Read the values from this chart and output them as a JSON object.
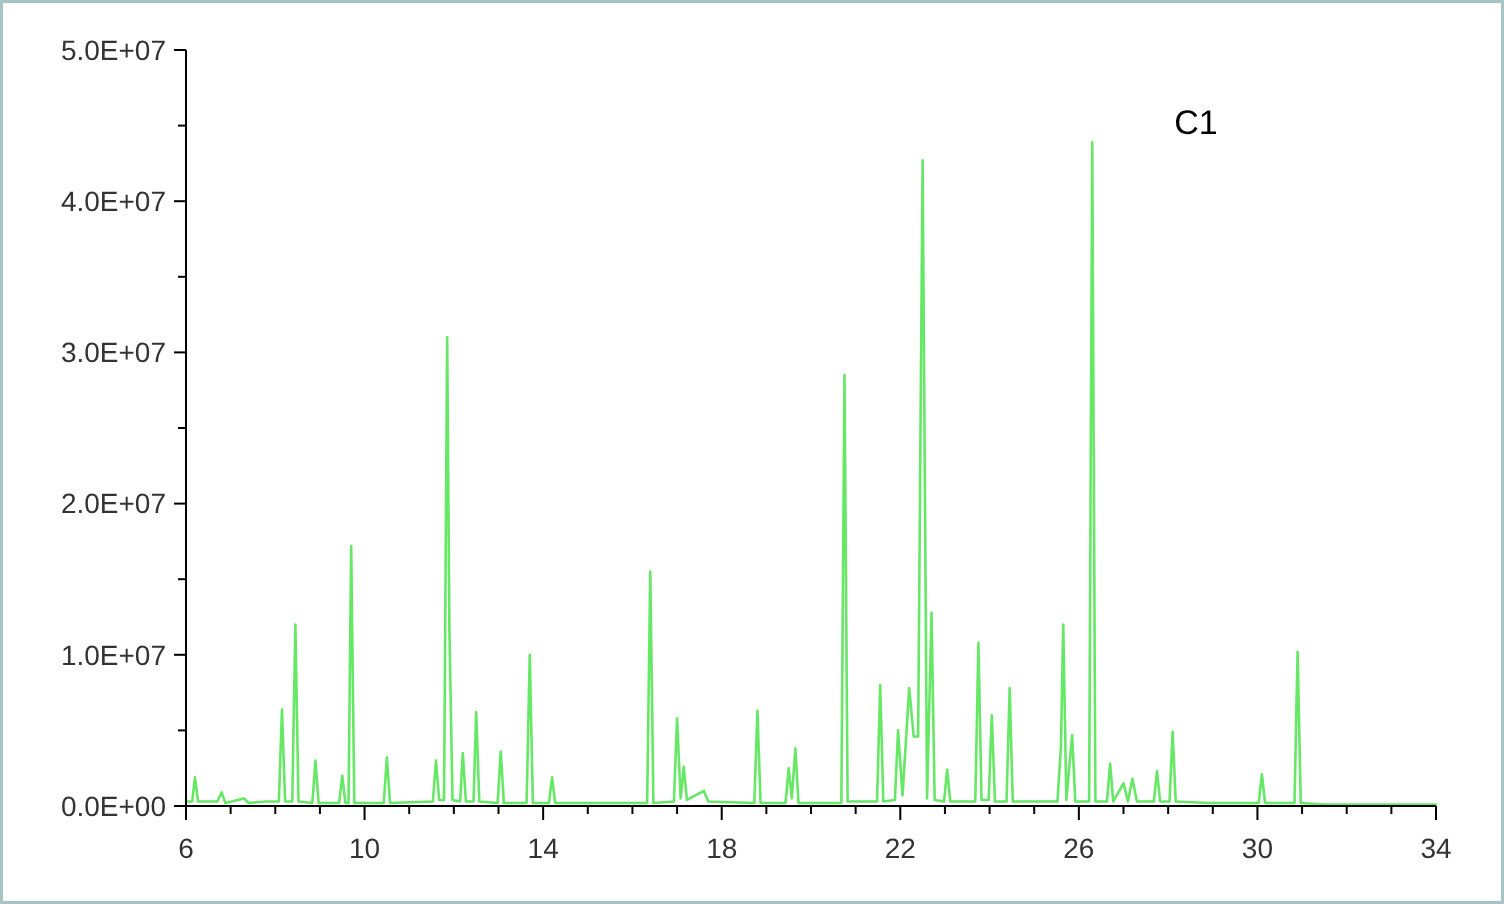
{
  "chart_data": {
    "type": "line",
    "annotations": [
      "C1"
    ],
    "xlim": [
      6,
      34
    ],
    "xticks": [
      6,
      {
        "value": 7,
        "label": null
      },
      {
        "value": 8,
        "label": null
      },
      {
        "value": 9,
        "label": null
      },
      10,
      {
        "value": 11,
        "label": null
      },
      {
        "value": 12,
        "label": null
      },
      {
        "value": 13,
        "label": null
      },
      14,
      {
        "value": 15,
        "label": null
      },
      {
        "value": 16,
        "label": null
      },
      {
        "value": 17,
        "label": null
      },
      18,
      {
        "value": 19,
        "label": null
      },
      {
        "value": 20,
        "label": null
      },
      {
        "value": 21,
        "label": null
      },
      22,
      {
        "value": 23,
        "label": null
      },
      {
        "value": 24,
        "label": null
      },
      {
        "value": 25,
        "label": null
      },
      26,
      {
        "value": 27,
        "label": null
      },
      {
        "value": 28,
        "label": null
      },
      {
        "value": 29,
        "label": null
      },
      30,
      {
        "value": 31,
        "label": null
      },
      {
        "value": 32,
        "label": null
      },
      {
        "value": 33,
        "label": null
      },
      34
    ],
    "ylim": [
      0,
      50000000.0
    ],
    "yticks": [
      {
        "value": 0,
        "label": "0.0E+00"
      },
      {
        "value": 5000000.0,
        "label": null
      },
      {
        "value": 10000000.0,
        "label": "1.0E+07"
      },
      {
        "value": 15000000.0,
        "label": null
      },
      {
        "value": 20000000.0,
        "label": "2.0E+07"
      },
      {
        "value": 25000000.0,
        "label": null
      },
      {
        "value": 30000000.0,
        "label": "3.0E+07"
      },
      {
        "value": 35000000.0,
        "label": null
      },
      {
        "value": 40000000.0,
        "label": "4.0E+07"
      },
      {
        "value": 45000000.0,
        "label": null
      },
      {
        "value": 50000000.0,
        "label": "5.0E+07"
      }
    ],
    "grid": false,
    "marker": "none",
    "line_style": "solid",
    "series": [
      {
        "color": "#66e866",
        "x": [
          6,
          6.14,
          6.2,
          6.27,
          6.7,
          6.8,
          6.88,
          7.3,
          7.4,
          7.8,
          8.08,
          8.15,
          8.22,
          8.38,
          8.45,
          8.52,
          8.83,
          8.9,
          8.97,
          9.43,
          9.5,
          9.57,
          9.64,
          9.7,
          9.77,
          10.43,
          10.5,
          10.57,
          11.53,
          11.6,
          11.67,
          11.78,
          11.85,
          11.9,
          11.97,
          12.14,
          12.2,
          12.27,
          12.44,
          12.5,
          12.57,
          12.98,
          13.05,
          13.12,
          13.63,
          13.7,
          13.77,
          14.13,
          14.2,
          14.27,
          16.33,
          16.4,
          16.47,
          16.93,
          17.0,
          17.08,
          17.15,
          17.22,
          17.6,
          17.7,
          18.73,
          18.8,
          18.87,
          19.43,
          19.5,
          19.57,
          19.65,
          19.72,
          20.68,
          20.75,
          20.82,
          21.48,
          21.55,
          21.62,
          21.88,
          21.95,
          22.05,
          22.2,
          22.3,
          22.4,
          22.5,
          22.6,
          22.7,
          22.77,
          22.98,
          23.05,
          23.12,
          23.68,
          23.75,
          23.82,
          23.98,
          24.05,
          24.12,
          24.38,
          24.45,
          24.52,
          25.52,
          25.6,
          25.65,
          25.72,
          25.85,
          25.92,
          26.23,
          26.3,
          26.37,
          26.63,
          26.7,
          26.77,
          27.0,
          27.1,
          27.2,
          27.3,
          27.68,
          27.75,
          27.82,
          28.03,
          28.1,
          28.17,
          28.9,
          30.03,
          30.1,
          30.17,
          30.83,
          30.9,
          30.97,
          31.5,
          34
        ],
        "values": [
          300000.0,
          300000.0,
          1900000.0,
          300000.0,
          300000.0,
          900000.0,
          200000.0,
          500000.0,
          200000.0,
          300000.0,
          300000.0,
          6400000.0,
          300000.0,
          300000.0,
          12000000.0,
          300000.0,
          200000.0,
          3000000.0,
          200000.0,
          200000.0,
          2000000.0,
          200000.0,
          200000.0,
          17200000.0,
          200000.0,
          200000.0,
          3200000.0,
          200000.0,
          300000.0,
          3000000.0,
          400000.0,
          400000.0,
          31000000.0,
          11700000.0,
          400000.0,
          300000.0,
          3500000.0,
          300000.0,
          300000.0,
          6200000.0,
          300000.0,
          200000.0,
          3600000.0,
          200000.0,
          200000.0,
          10000000.0,
          200000.0,
          200000.0,
          1900000.0,
          200000.0,
          200000.0,
          15500000.0,
          200000.0,
          300000.0,
          5800000.0,
          500000.0,
          2600000.0,
          400000.0,
          1000000.0,
          300000.0,
          200000.0,
          6300000.0,
          200000.0,
          200000.0,
          2500000.0,
          500000.0,
          3800000.0,
          200000.0,
          200000.0,
          28500000.0,
          300000.0,
          300000.0,
          8000000.0,
          300000.0,
          400000.0,
          5000000.0,
          700000.0,
          7800000.0,
          4600000.0,
          4600000.0,
          42700000.0,
          500000.0,
          12800000.0,
          400000.0,
          300000.0,
          2400000.0,
          300000.0,
          300000.0,
          10800000.0,
          400000.0,
          400000.0,
          6000000.0,
          300000.0,
          300000.0,
          7800000.0,
          300000.0,
          300000.0,
          4000000.0,
          12000000.0,
          400000.0,
          4700000.0,
          300000.0,
          300000.0,
          43900000.0,
          300000.0,
          300000.0,
          2800000.0,
          300000.0,
          1500000.0,
          300000.0,
          1800000.0,
          300000.0,
          300000.0,
          2300000.0,
          300000.0,
          300000.0,
          4900000.0,
          300000.0,
          200000.0,
          200000.0,
          2100000.0,
          200000.0,
          200000.0,
          10200000.0,
          200000.0,
          100000.0,
          100000.0
        ]
      }
    ]
  }
}
